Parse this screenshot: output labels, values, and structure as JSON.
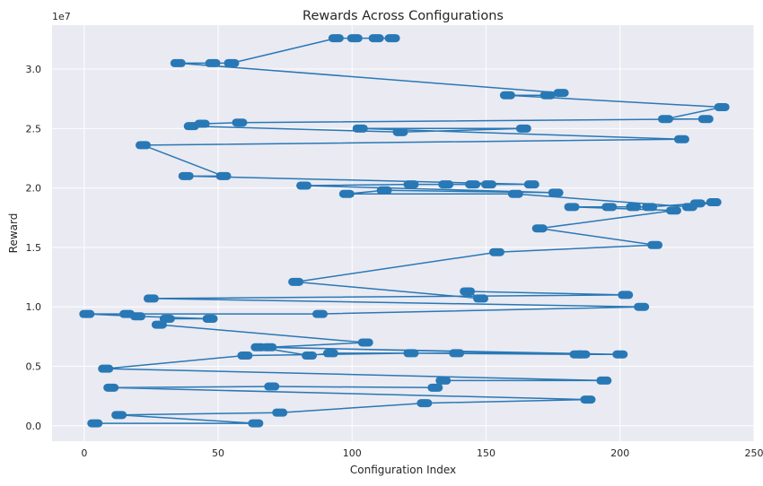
{
  "chart_data": {
    "type": "line",
    "title": "Rewards Across Configurations",
    "xlabel": "Configuration Index",
    "ylabel": "Reward",
    "y_offset_label": "1e7",
    "xlim": [
      -12,
      250
    ],
    "ylim": [
      -0.13,
      3.37
    ],
    "x_ticks": [
      0,
      50,
      100,
      150,
      200,
      250
    ],
    "y_ticks": [
      0.0,
      0.5,
      1.0,
      1.5,
      2.0,
      2.5,
      3.0
    ],
    "y_tick_labels": [
      "0.0",
      "0.5",
      "1.0",
      "1.5",
      "2.0",
      "2.5",
      "3.0"
    ],
    "grid": true,
    "legend": false,
    "colors": {
      "line": "#2878b5",
      "background": "#eaeaf2",
      "grid": "#ffffff"
    },
    "series": [
      {
        "x": [
          4,
          64,
          13,
          73,
          127,
          188,
          10,
          70,
          131,
          134,
          194,
          8,
          60,
          122,
          184,
          200,
          65,
          84,
          92,
          139,
          186,
          69,
          105,
          28,
          31,
          47,
          20,
          1,
          16,
          88,
          208,
          25,
          202,
          143,
          148,
          79,
          154,
          213,
          170,
          220,
          182,
          196,
          205,
          211,
          229,
          235,
          226,
          161,
          98,
          112,
          176,
          82,
          122,
          135,
          145,
          151,
          167,
          38,
          52,
          22,
          223,
          103,
          164,
          118,
          40,
          44,
          58,
          232,
          217,
          238,
          158,
          173,
          178,
          35,
          48,
          55,
          94,
          101,
          109,
          115
        ],
        "y": [
          0.02,
          0.02,
          0.09,
          0.11,
          0.19,
          0.22,
          0.32,
          0.33,
          0.32,
          0.38,
          0.38,
          0.48,
          0.59,
          0.61,
          0.6,
          0.6,
          0.66,
          0.59,
          0.61,
          0.61,
          0.6,
          0.66,
          0.7,
          0.85,
          0.9,
          0.9,
          0.92,
          0.94,
          0.94,
          0.94,
          1.0,
          1.07,
          1.1,
          1.13,
          1.07,
          1.21,
          1.46,
          1.52,
          1.66,
          1.81,
          1.84,
          1.84,
          1.84,
          1.84,
          1.87,
          1.88,
          1.84,
          1.95,
          1.95,
          1.98,
          1.96,
          2.02,
          2.03,
          2.03,
          2.03,
          2.03,
          2.03,
          2.1,
          2.1,
          2.36,
          2.41,
          2.5,
          2.5,
          2.47,
          2.52,
          2.54,
          2.55,
          2.58,
          2.58,
          2.68,
          2.78,
          2.78,
          2.8,
          3.05,
          3.05,
          3.05,
          3.26,
          3.26,
          3.26,
          3.26
        ]
      }
    ]
  }
}
